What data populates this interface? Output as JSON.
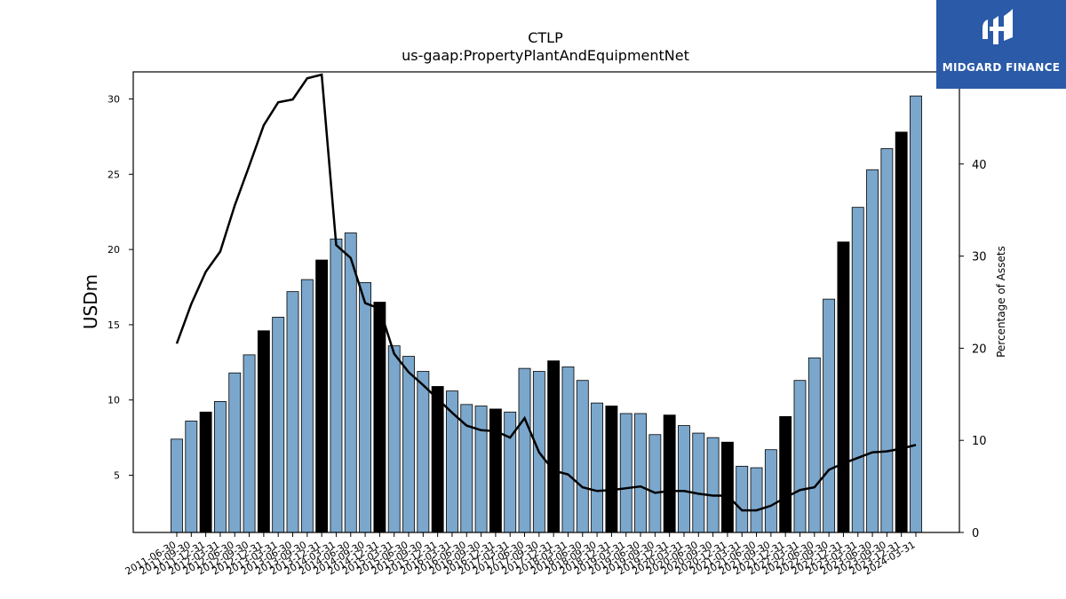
{
  "brand": {
    "name": "MIDGARD FINANCE",
    "color": "#2a5aa8"
  },
  "chart_data": {
    "type": "bar",
    "title": "CTLP",
    "subtitle": "us-gaap:PropertyPlantAndEquipmentNet",
    "ylabel": "USDm",
    "y2label": "Percentage of Assets",
    "ylim": [
      1.2,
      31.8
    ],
    "y2lim": [
      0,
      50
    ],
    "yticks": [
      5,
      10,
      15,
      20,
      25,
      30
    ],
    "y2ticks": [
      0,
      10,
      20,
      30,
      40,
      50
    ],
    "grid": false,
    "colors": {
      "bar": "#7ba7cc",
      "bar_highlight": "#000000",
      "line": "#000000"
    },
    "categories": [
      "2011-06-30",
      "2011-09-30",
      "2011-12-31",
      "2012-03-31",
      "2012-06-30",
      "2012-09-30",
      "2012-12-31",
      "2013-03-31",
      "2013-06-30",
      "2013-09-30",
      "2013-12-31",
      "2014-03-31",
      "2014-06-30",
      "2014-09-30",
      "2014-12-31",
      "2015-03-31",
      "2015-06-30",
      "2015-09-30",
      "2015-12-31",
      "2016-03-31",
      "2016-06-30",
      "2016-09-30",
      "2016-12-31",
      "2017-03-31",
      "2017-06-30",
      "2017-09-30",
      "2017-12-31",
      "2018-03-31",
      "2018-06-30",
      "2018-09-30",
      "2018-12-31",
      "2019-03-31",
      "2019-06-30",
      "2019-09-30",
      "2019-12-31",
      "2020-03-31",
      "2020-06-30",
      "2020-09-30",
      "2020-12-31",
      "2021-03-31",
      "2021-06-30",
      "2021-09-30",
      "2021-12-31",
      "2022-03-31",
      "2022-06-30",
      "2022-09-30",
      "2022-12-31",
      "2023-03-31",
      "2023-06-30",
      "2023-09-30",
      "2023-12-31",
      "2024-03-31"
    ],
    "series": [
      {
        "kind": "bar",
        "axis": "left",
        "values": [
          7.4,
          8.6,
          9.2,
          9.9,
          11.8,
          13.0,
          14.6,
          15.5,
          17.2,
          18.0,
          19.3,
          20.7,
          21.1,
          17.8,
          16.5,
          13.6,
          12.9,
          11.9,
          10.9,
          10.6,
          9.7,
          9.6,
          9.4,
          9.2,
          12.1,
          11.9,
          12.6,
          12.2,
          11.3,
          9.8,
          9.6,
          9.1,
          9.1,
          7.7,
          9.0,
          8.3,
          7.8,
          7.5,
          7.2,
          5.6,
          5.5,
          6.7,
          8.9,
          11.3,
          12.8,
          16.7,
          20.5,
          22.8,
          25.3,
          26.7,
          27.8,
          30.2
        ],
        "highlight": [
          false,
          false,
          true,
          false,
          false,
          false,
          true,
          false,
          false,
          false,
          true,
          false,
          false,
          false,
          true,
          false,
          false,
          false,
          true,
          false,
          false,
          false,
          true,
          false,
          false,
          false,
          true,
          false,
          false,
          false,
          true,
          false,
          false,
          false,
          true,
          false,
          false,
          false,
          true,
          false,
          false,
          false,
          true,
          false,
          false,
          false,
          true,
          false,
          false,
          false,
          true,
          false
        ]
      },
      {
        "kind": "line",
        "axis": "right",
        "values": [
          20.5,
          24.8,
          28.3,
          30.5,
          35.5,
          39.8,
          44.2,
          46.7,
          47.0,
          49.3,
          49.7,
          31.2,
          29.8,
          24.9,
          24.3,
          19.4,
          17.4,
          16.0,
          14.5,
          13.0,
          11.6,
          11.1,
          11.0,
          10.3,
          12.4,
          8.7,
          6.7,
          6.3,
          4.9,
          4.5,
          4.6,
          4.8,
          5.0,
          4.3,
          4.5,
          4.5,
          4.2,
          4.0,
          4.0,
          2.4,
          2.4,
          2.9,
          3.8,
          4.6,
          4.9,
          6.8,
          7.5,
          8.1,
          8.7,
          8.8,
          9.1,
          9.5
        ]
      }
    ]
  }
}
